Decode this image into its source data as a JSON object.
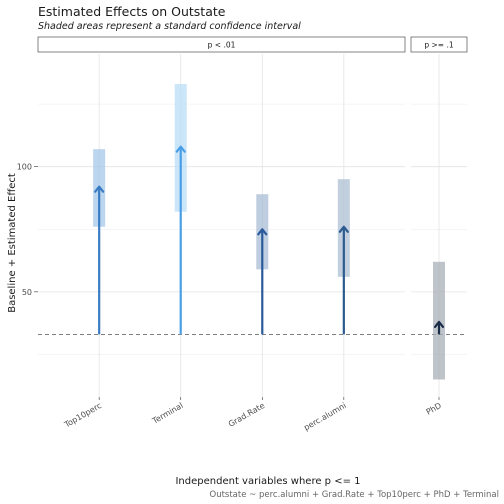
{
  "chart_data": {
    "type": "arrow-interval",
    "title": "Estimated Effects on Outstate",
    "subtitle": "Shaded areas represent a standard confidence interval",
    "xlabel": "Independent variables where p <= 1",
    "ylabel": "Baseline + Estimated Effect",
    "caption": "Outstate ~ perc.alumni + Grad.Rate + Top10perc + PhD + Terminal",
    "baseline": 33,
    "ylim": [
      8,
      145
    ],
    "yticks": [
      50,
      100
    ],
    "grid": true,
    "panels": [
      {
        "label": "p < .01",
        "variables": [
          {
            "name": "Top10perc",
            "estimate": 92,
            "ci_low": 76,
            "ci_high": 107,
            "color": "#3a7cc4",
            "band_color": "#a6c8ea"
          },
          {
            "name": "Terminal",
            "estimate": 108,
            "ci_low": 82,
            "ci_high": 133,
            "color": "#4a9ee6",
            "band_color": "#b9dcf7"
          },
          {
            "name": "Grad.Rate",
            "estimate": 75,
            "ci_low": 59,
            "ci_high": 89,
            "color": "#2a5a9c",
            "band_color": "#a9bcd6"
          },
          {
            "name": "perc.alumni",
            "estimate": 76,
            "ci_low": 56,
            "ci_high": 95,
            "color": "#2c5a8f",
            "band_color": "#aebfd3"
          }
        ]
      },
      {
        "label": "p >= .1",
        "variables": [
          {
            "name": "PhD",
            "estimate": 38,
            "ci_low": 15,
            "ci_high": 62,
            "color": "#1b2d49",
            "band_color": "#a9afb8"
          }
        ]
      }
    ]
  }
}
